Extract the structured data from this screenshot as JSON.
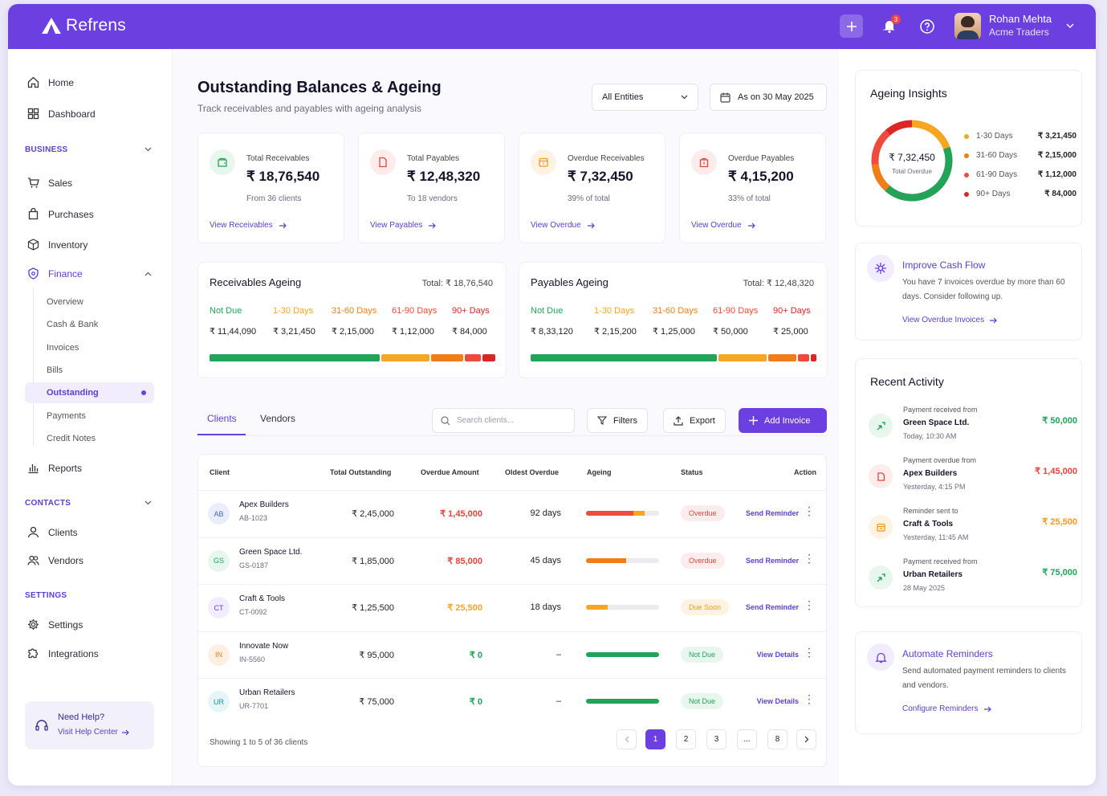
{
  "app": {
    "name": "Refrens",
    "notification_count": "3"
  },
  "user": {
    "name": "Rohan Mehta",
    "company": "Acme Traders"
  },
  "sidebar": {
    "top": [
      {
        "label": "Home"
      },
      {
        "label": "Dashboard"
      }
    ],
    "business_title": "BUSINESS",
    "business": [
      {
        "label": "Sales"
      },
      {
        "label": "Purchases"
      },
      {
        "label": "Inventory"
      },
      {
        "label": "Finance"
      }
    ],
    "finance_sub": [
      {
        "label": "Overview"
      },
      {
        "label": "Cash & Bank"
      },
      {
        "label": "Invoices"
      },
      {
        "label": "Bills"
      },
      {
        "label": "Outstanding"
      },
      {
        "label": "Payments"
      },
      {
        "label": "Credit Notes"
      }
    ],
    "reports": "Reports",
    "contacts_title": "CONTACTS",
    "contacts": [
      {
        "label": "Clients"
      },
      {
        "label": "Vendors"
      }
    ],
    "settings_title": "SETTINGS",
    "settings": [
      {
        "label": "Settings"
      },
      {
        "label": "Integrations"
      }
    ],
    "help": {
      "title": "Need Help?",
      "link": "Visit Help Center"
    }
  },
  "header": {
    "title": "Outstanding Balances & Ageing",
    "subtitle": "Track receivables and payables with ageing analysis",
    "entity": "All Entities",
    "date": "As on 30 May 2025"
  },
  "kpis": [
    {
      "label": "Total Receivables",
      "value": "₹ 18,76,540",
      "sub": "From 36 clients",
      "link": "View Receivables",
      "color": "#22a35a",
      "bg": "#e7f7ee"
    },
    {
      "label": "Total Payables",
      "value": "₹ 12,48,320",
      "sub": "To 18 vendors",
      "link": "View Payables",
      "color": "#e2453c",
      "bg": "#fdecec"
    },
    {
      "label": "Overdue Receivables",
      "value": "₹ 7,32,450",
      "sub": "39% of total",
      "link": "View Overdue",
      "color": "#f29a1e",
      "bg": "#fef3e2"
    },
    {
      "label": "Overdue Payables",
      "value": "₹ 4,15,200",
      "sub": "33% of total",
      "link": "View Overdue",
      "color": "#e2453c",
      "bg": "#fdecec"
    }
  ],
  "ageing": [
    {
      "title": "Receivables Ageing",
      "total": "Total: ₹ 18,76,540",
      "buckets": [
        {
          "label": "Not Due",
          "value": "₹ 11,44,090",
          "amount": 1144090
        },
        {
          "label": "1-30 Days",
          "value": "₹ 3,21,450",
          "amount": 321450
        },
        {
          "label": "31-60 Days",
          "value": "₹ 2,15,000",
          "amount": 215000
        },
        {
          "label": "61-90 Days",
          "value": "₹ 1,12,000",
          "amount": 112000
        },
        {
          "label": "90+ Days",
          "value": "₹ 84,000",
          "amount": 84000
        }
      ]
    },
    {
      "title": "Payables Ageing",
      "total": "Total: ₹ 12,48,320",
      "buckets": [
        {
          "label": "Not Due",
          "value": "₹ 8,33,120",
          "amount": 833120
        },
        {
          "label": "1-30 Days",
          "value": "₹ 2,15,200",
          "amount": 215200
        },
        {
          "label": "31-60 Days",
          "value": "₹ 1,25,000",
          "amount": 125000
        },
        {
          "label": "61-90 Days",
          "value": "₹ 50,000",
          "amount": 50000
        },
        {
          "label": "90+ Days",
          "value": "₹ 25,000",
          "amount": 25000
        }
      ]
    }
  ],
  "bucket_colors": [
    "#22a35a",
    "#f5a623",
    "#f07c1a",
    "#ef4b3c",
    "#dc2626"
  ],
  "tabs": [
    {
      "label": "Clients"
    },
    {
      "label": "Vendors"
    }
  ],
  "search_placeholder": "Search clients...",
  "actions": {
    "filters": "Filters",
    "export": "Export",
    "add": "Add Invoice"
  },
  "table": {
    "columns": [
      "Client",
      "Total Outstanding",
      "Overdue Amount",
      "Oldest Overdue",
      "Ageing",
      "Status",
      "Action"
    ],
    "rows": [
      {
        "initials": "AB",
        "name": "Apex Builders",
        "code": "AB-1023",
        "total": "₹ 2,45,000",
        "overdue": "₹ 1,45,000",
        "oldest": "92 days",
        "status": "Overdue",
        "action": "Send Reminder",
        "ageing": [
          0.65,
          0.15
        ],
        "tone": "red"
      },
      {
        "initials": "GS",
        "name": "Green Space Ltd.",
        "code": "GS-0187",
        "total": "₹ 1,85,000",
        "overdue": "₹ 85,000",
        "oldest": "45 days",
        "status": "Overdue",
        "action": "Send Reminder",
        "ageing": [
          0.55
        ],
        "tone": "red"
      },
      {
        "initials": "CT",
        "name": "Craft & Tools",
        "code": "CT-0092",
        "total": "₹ 1,25,500",
        "overdue": "₹ 25,500",
        "oldest": "18 days",
        "status": "Due Soon",
        "action": "Send Reminder",
        "ageing": [
          0.3
        ],
        "tone": "orange"
      },
      {
        "initials": "IN",
        "name": "Innovate Now",
        "code": "IN-5560",
        "total": "₹ 95,000",
        "overdue": "₹ 0",
        "oldest": "–",
        "status": "Not Due",
        "action": "View Details",
        "ageing": [
          1.0
        ],
        "tone": "green"
      },
      {
        "initials": "UR",
        "name": "Urban Retailers",
        "code": "UR-7701",
        "total": "₹ 75,000",
        "overdue": "₹ 0",
        "oldest": "–",
        "status": "Not Due",
        "action": "View Details",
        "ageing": [
          1.0
        ],
        "tone": "green"
      }
    ],
    "showing": "Showing 1 to 5 of 36 clients",
    "pages": [
      "1",
      "2",
      "3",
      "...",
      "8"
    ]
  },
  "insights": {
    "title": "Ageing Insights",
    "total": "₹ 7,32,450",
    "total_label": "Total Overdue",
    "items": [
      {
        "label": "1-30 Days",
        "value": "₹ 3,21,450",
        "amount": 321450,
        "color": "#f5a623"
      },
      {
        "label": "31-60 Days",
        "value": "₹ 2,15,000",
        "amount": 215000,
        "color": "#f07c1a"
      },
      {
        "label": "61-90 Days",
        "value": "₹ 1,12,000",
        "amount": 112000,
        "color": "#ef4b3c"
      },
      {
        "label": "90+ Days",
        "value": "₹ 84,000",
        "amount": 84000,
        "color": "#dc2626"
      }
    ]
  },
  "cashflow": {
    "title": "Improve Cash Flow",
    "text": "You have 7 invoices overdue by more than 60 days. Consider following up.",
    "link": "View Overdue Invoices"
  },
  "activity": {
    "title": "Recent Activity",
    "items": [
      {
        "label": "Payment received from",
        "name": "Green Space Ltd.",
        "time": "Today, 10:30 AM",
        "amount": "₹ 50,000",
        "color": "#22a35a",
        "bg": "#e7f7ee"
      },
      {
        "label": "Payment overdue from",
        "name": "Apex Builders",
        "time": "Yesterday, 4:15 PM",
        "amount": "₹ 1,45,000",
        "color": "#e2453c",
        "bg": "#fdecec"
      },
      {
        "label": "Reminder sent to",
        "name": "Craft & Tools",
        "time": "Yesterday, 11:45 AM",
        "amount": "₹ 25,500",
        "color": "#f29a1e",
        "bg": "#fef3e2"
      },
      {
        "label": "Payment received from",
        "name": "Urban Retailers",
        "time": "28 May 2025",
        "amount": "₹ 75,000",
        "color": "#22a35a",
        "bg": "#e7f7ee"
      }
    ]
  },
  "automate": {
    "title": "Automate Reminders",
    "text": "Send automated payment reminders to clients and vendors.",
    "link": "Configure Reminders"
  }
}
